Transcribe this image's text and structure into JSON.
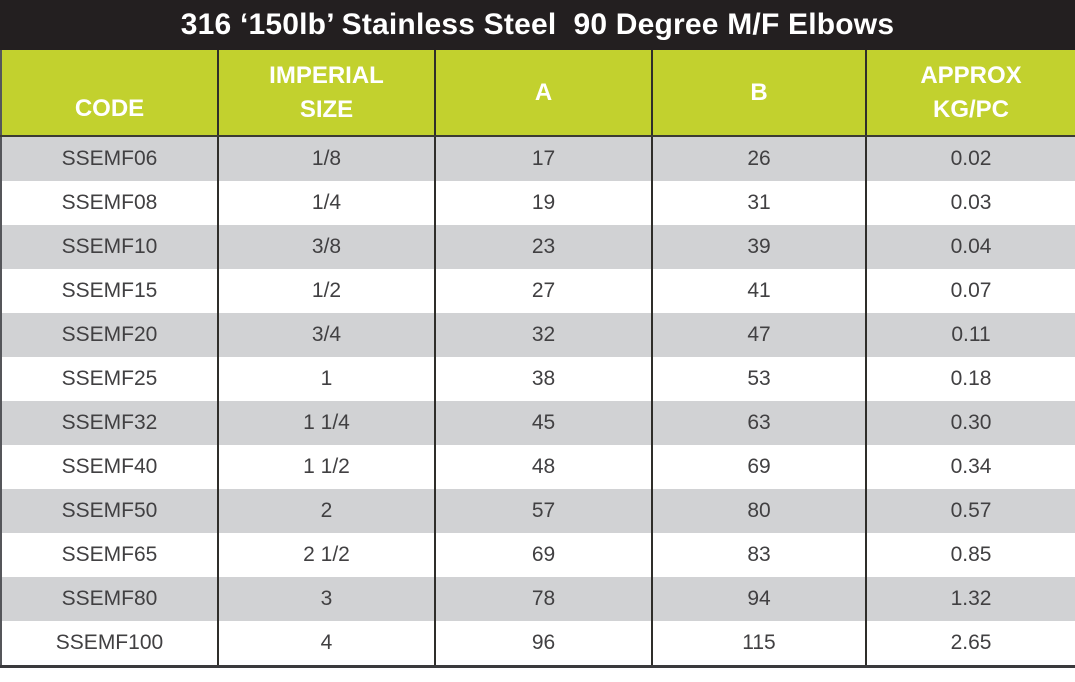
{
  "title": "316 ‘150lb’ Stainless Steel  90 Degree M/F Elbows",
  "table": {
    "columns": [
      {
        "key": "code",
        "lines": [
          "CODE"
        ]
      },
      {
        "key": "imperial_size",
        "lines": [
          "IMPERIAL",
          "SIZE"
        ]
      },
      {
        "key": "a",
        "lines": [
          "A"
        ]
      },
      {
        "key": "b",
        "lines": [
          "B"
        ]
      },
      {
        "key": "approx_kg_pc",
        "lines": [
          "APPROX",
          "KG/PC"
        ]
      }
    ],
    "rows": [
      [
        "SSEMF06",
        "1/8",
        "17",
        "26",
        "0.02"
      ],
      [
        "SSEMF08",
        "1/4",
        "19",
        "31",
        "0.03"
      ],
      [
        "SSEMF10",
        "3/8",
        "23",
        "39",
        "0.04"
      ],
      [
        "SSEMF15",
        "1/2",
        "27",
        "41",
        "0.07"
      ],
      [
        "SSEMF20",
        "3/4",
        "32",
        "47",
        "0.11"
      ],
      [
        "SSEMF25",
        "1",
        "38",
        "53",
        "0.18"
      ],
      [
        "SSEMF32",
        "1 1/4",
        "45",
        "63",
        "0.30"
      ],
      [
        "SSEMF40",
        "1 1/2",
        "48",
        "69",
        "0.34"
      ],
      [
        "SSEMF50",
        "2",
        "57",
        "80",
        "0.57"
      ],
      [
        "SSEMF65",
        "2 1/2",
        "69",
        "83",
        "0.85"
      ],
      [
        "SSEMF80",
        "3",
        "78",
        "94",
        "1.32"
      ],
      [
        "SSEMF100",
        "4",
        "96",
        "115",
        "2.65"
      ]
    ]
  },
  "colors": {
    "title_bar_bg": "#231f20",
    "title_text": "#ffffff",
    "header_bg": "#c2d12e",
    "header_text": "#ffffff",
    "row_alt_bg": "#d1d2d4",
    "row_bg": "#ffffff",
    "cell_text": "#414042",
    "column_divider": "#2f2e2a",
    "outer_border": "#55565a"
  }
}
